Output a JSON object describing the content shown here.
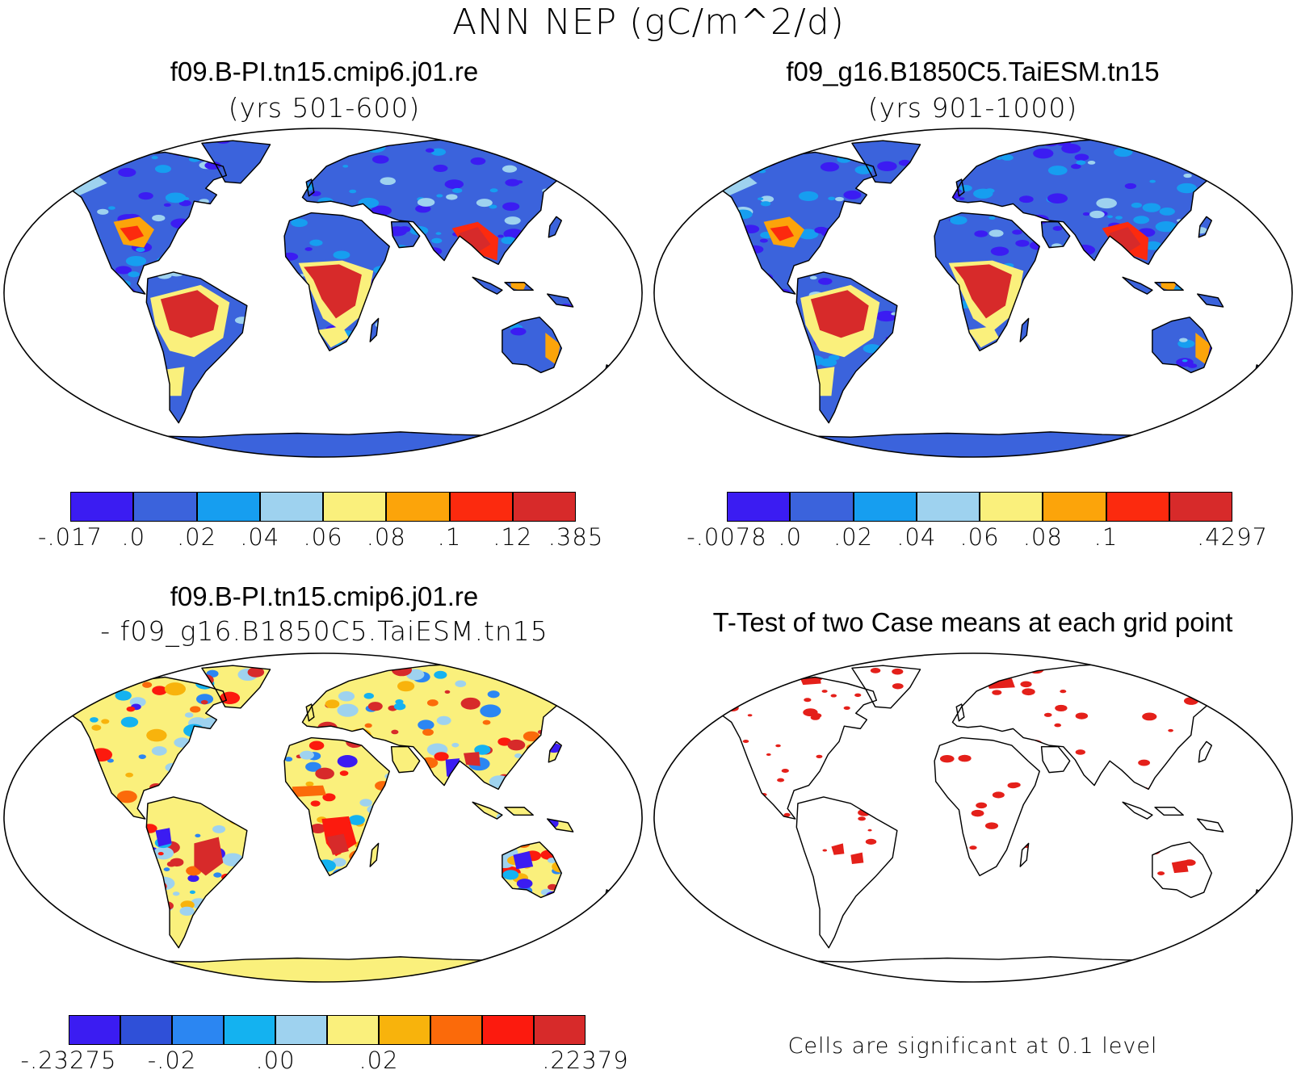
{
  "figure": {
    "title": "ANN NEP (gC/m^2/d)"
  },
  "panels": [
    {
      "id": "case1",
      "title": "f09.B-PI.tn15.cmip6.j01.re",
      "subtitle": "(yrs 501-600)",
      "colorbar": {
        "colors": [
          "#3b1cf2",
          "#3b63dc",
          "#169ef0",
          "#9ed2ef",
          "#faf07c",
          "#fca40a",
          "#fc2a0e",
          "#d72a2a"
        ],
        "labels": [
          "-.017",
          ".0",
          ".02",
          ".04",
          ".06",
          ".08",
          ".1",
          ".12",
          ".385"
        ]
      }
    },
    {
      "id": "case2",
      "title": "f09_g16.B1850C5.TaiESM.tn15",
      "subtitle": "(yrs 901-1000)",
      "colorbar": {
        "colors": [
          "#3b1cf2",
          "#3b63dc",
          "#169ef0",
          "#9ed2ef",
          "#faf07c",
          "#fca40a",
          "#fc2a0e",
          "#d72a2a"
        ],
        "labels": [
          "-.0078",
          ".0",
          ".02",
          ".04",
          ".06",
          ".08",
          ".1",
          "",
          ".4297"
        ]
      }
    },
    {
      "id": "diff",
      "title": "f09.B-PI.tn15.cmip6.j01.re",
      "subtitle": "- f09_g16.B1850C5.TaiESM.tn15",
      "colorbar": {
        "colors": [
          "#3b1cf2",
          "#2f50d8",
          "#2b86f2",
          "#14b2f0",
          "#9ed2ef",
          "#faf07c",
          "#f8b30c",
          "#fb6a0a",
          "#fc1a0e",
          "#d72a2a"
        ],
        "labels": [
          "-.23275",
          "",
          "-.02",
          "",
          ".00",
          "",
          ".02",
          "",
          "",
          "",
          ".22379"
        ]
      }
    },
    {
      "id": "ttest",
      "title": "T-Test of two Case means at each grid point",
      "note": "Cells are significant at 0.1 level"
    }
  ]
}
